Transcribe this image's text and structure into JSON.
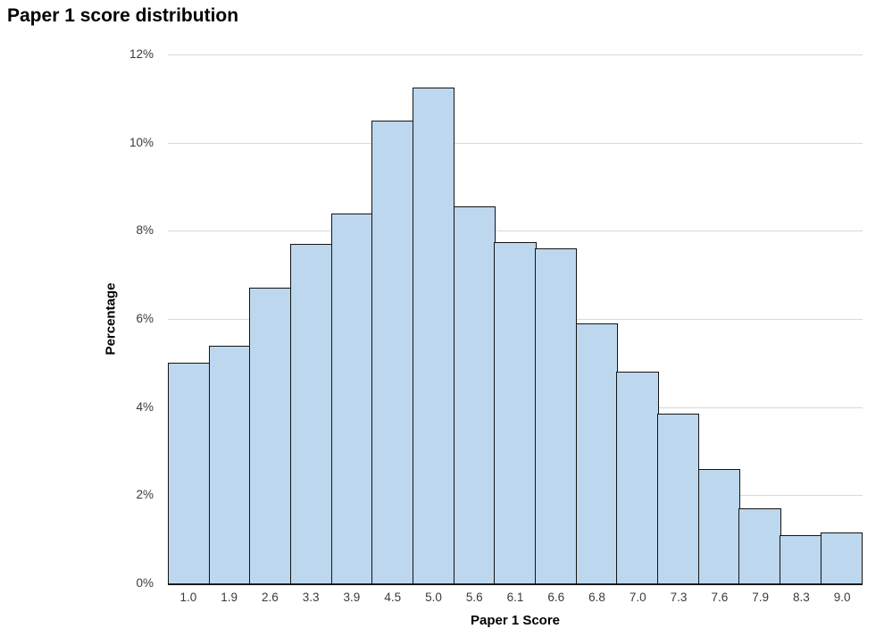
{
  "chart": {
    "title": "Paper 1 score distribution",
    "xlabel": "Paper 1 Score",
    "ylabel": "Percentage"
  },
  "chart_data": {
    "type": "bar",
    "subtype": "histogram",
    "title": "Paper 1 score distribution",
    "xlabel": "Paper 1 Score",
    "ylabel": "Percentage",
    "categories": [
      "1.0",
      "1.9",
      "2.6",
      "3.3",
      "3.9",
      "4.5",
      "5.0",
      "5.6",
      "6.1",
      "6.6",
      "6.8",
      "7.0",
      "7.3",
      "7.6",
      "7.9",
      "8.3",
      "9.0"
    ],
    "values": [
      5.0,
      5.4,
      6.7,
      7.7,
      8.4,
      10.5,
      11.25,
      8.55,
      7.75,
      7.6,
      5.9,
      4.8,
      3.85,
      2.6,
      1.7,
      1.1,
      1.15
    ],
    "ylim": [
      0,
      12
    ],
    "ytick_step": 2,
    "ytick_labels": [
      "0%",
      "2%",
      "4%",
      "6%",
      "8%",
      "10%",
      "12%"
    ],
    "grid": true,
    "legend": "none",
    "colors": {
      "bar_fill": "#bdd7ee",
      "bar_border": "#141414",
      "gridline": "#d9d9d9",
      "axis_line": "#1a1a1a",
      "tick_label": "#3a3a3a",
      "title_text": "#000000"
    }
  }
}
